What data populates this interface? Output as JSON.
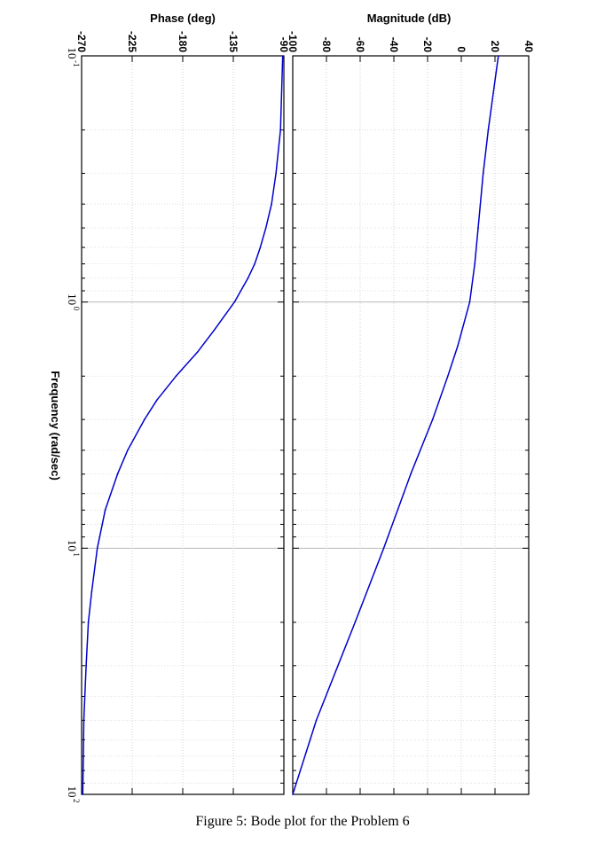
{
  "chart_data": [
    {
      "type": "line",
      "title": "Magnitude (dB)",
      "xlabel": "Frequency  (rad/sec)",
      "ylabel": "Magnitude (dB)",
      "xscale": "log",
      "xlim": [
        0.1,
        100
      ],
      "ylim": [
        -100,
        40
      ],
      "yticks": [
        "-100",
        "-80",
        "-60",
        "-40",
        "-20",
        "0",
        "20",
        "40"
      ],
      "grid": true,
      "orientation": "rotated 90 degrees clockwise",
      "series": [
        {
          "color": "#0000cc",
          "x": [
            0.1,
            0.2,
            0.3,
            0.5,
            0.7,
            1.0,
            1.5,
            2.0,
            3.0,
            5.0,
            10,
            20,
            50,
            100
          ],
          "y": [
            22,
            16,
            13,
            10,
            8,
            5,
            -2,
            -8,
            -17,
            -30,
            -46,
            -63,
            -86,
            -102
          ]
        }
      ]
    },
    {
      "type": "line",
      "title": "Phase (deg)",
      "xlabel": "Frequency  (rad/sec)",
      "ylabel": "Phase (deg)",
      "xscale": "log",
      "xlim": [
        0.1,
        100
      ],
      "ylim": [
        -270,
        -90
      ],
      "yticks": [
        "-270",
        "-225",
        "-180",
        "-135",
        "-90"
      ],
      "grid": true,
      "orientation": "rotated 90 degrees clockwise",
      "series": [
        {
          "color": "#0000cc",
          "x": [
            0.1,
            0.2,
            0.3,
            0.4,
            0.5,
            0.6,
            0.7,
            0.8,
            1.0,
            1.3,
            1.6,
            2.0,
            2.5,
            3.0,
            4.0,
            5.0,
            7.0,
            10,
            15,
            20,
            30,
            50,
            100
          ],
          "y": [
            -91,
            -93,
            -97,
            -101,
            -106,
            -111,
            -116,
            -122,
            -134,
            -152,
            -167,
            -186,
            -203,
            -214,
            -229,
            -238,
            -249,
            -256,
            -261,
            -264,
            -266,
            -268,
            -269
          ]
        }
      ]
    }
  ],
  "xticks": [
    {
      "base": "10",
      "exp": "-1"
    },
    {
      "base": "10",
      "exp": "0"
    },
    {
      "base": "10",
      "exp": "1"
    },
    {
      "base": "10",
      "exp": "2"
    }
  ],
  "caption": "Figure 5: Bode plot for the Problem 6"
}
